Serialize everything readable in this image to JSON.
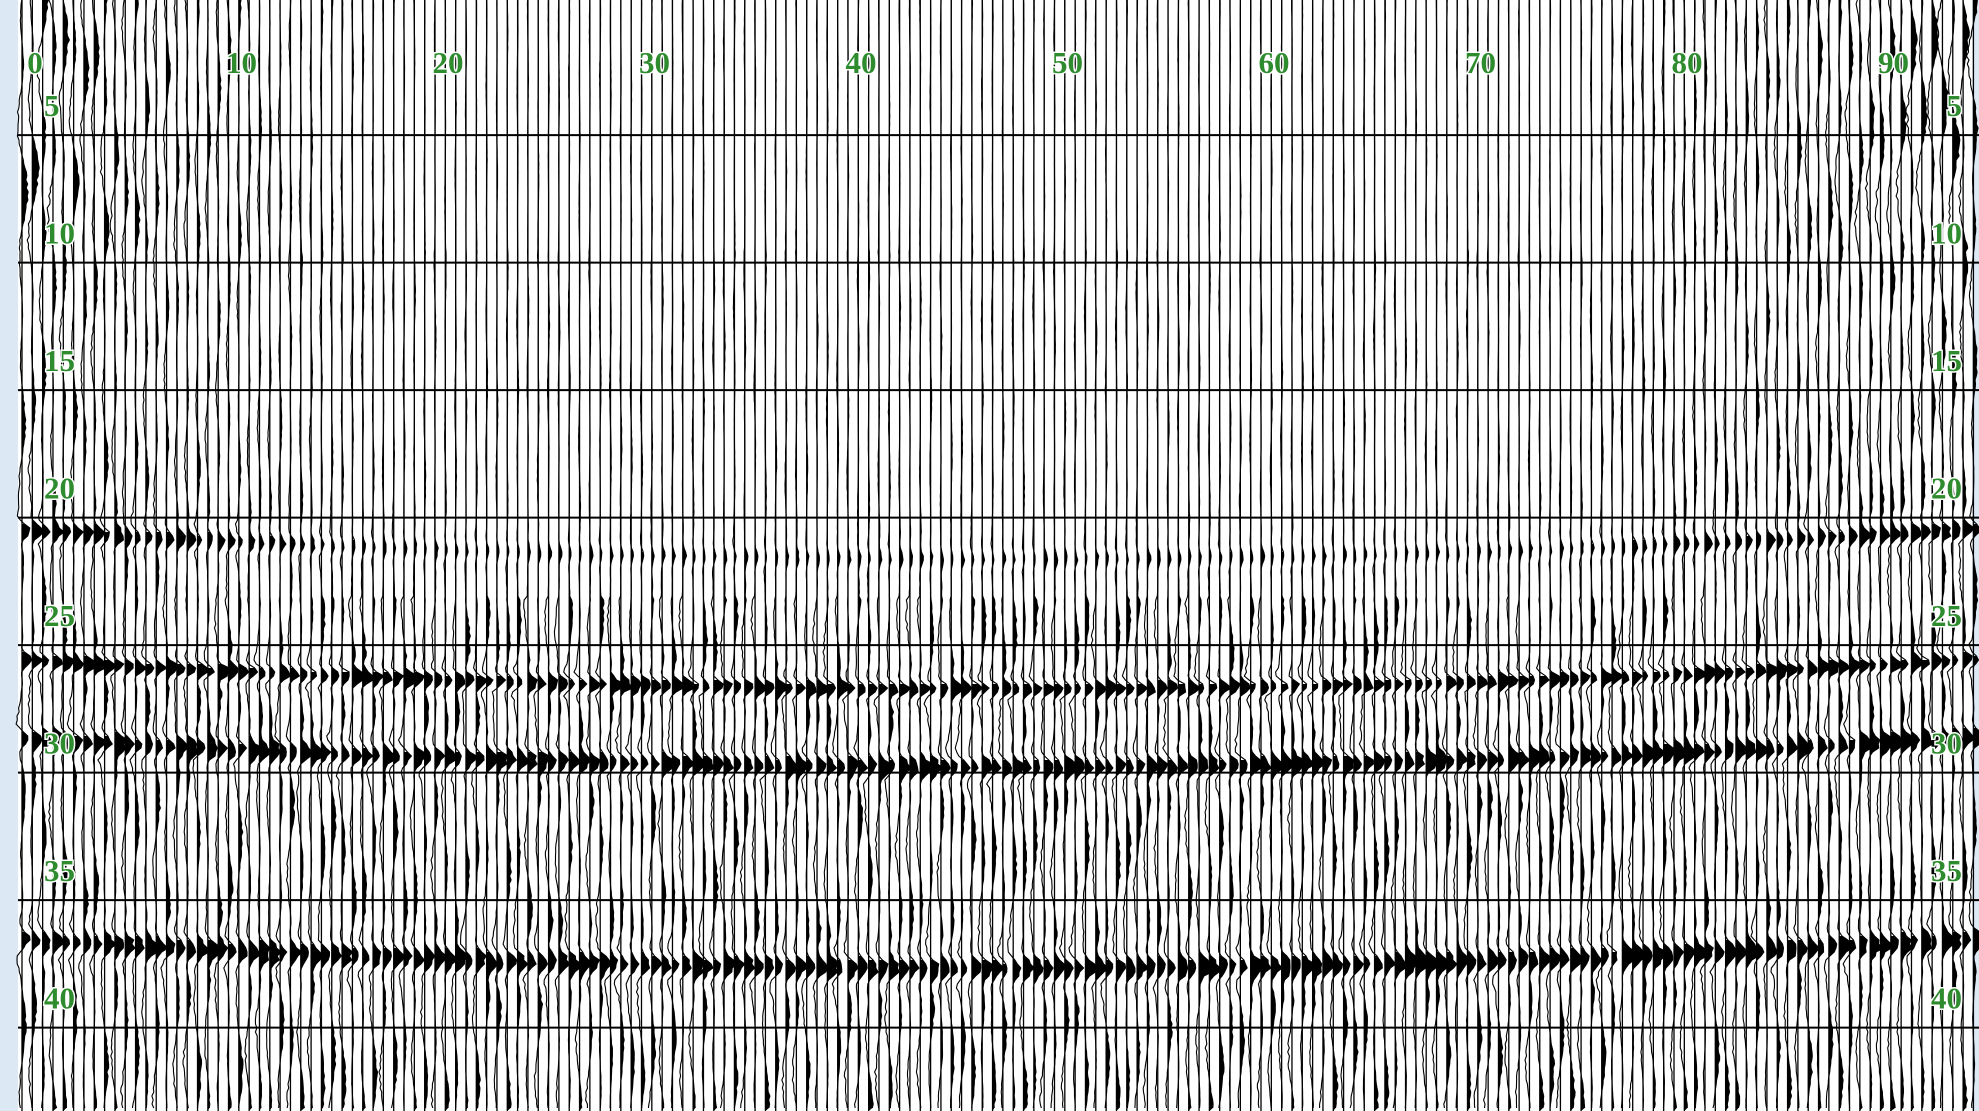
{
  "trace_labels": [
    0,
    10,
    20,
    30,
    40,
    50,
    60,
    70,
    80,
    90
  ],
  "time_labels": [
    5,
    10,
    15,
    20,
    25,
    30,
    35,
    40
  ]
}
